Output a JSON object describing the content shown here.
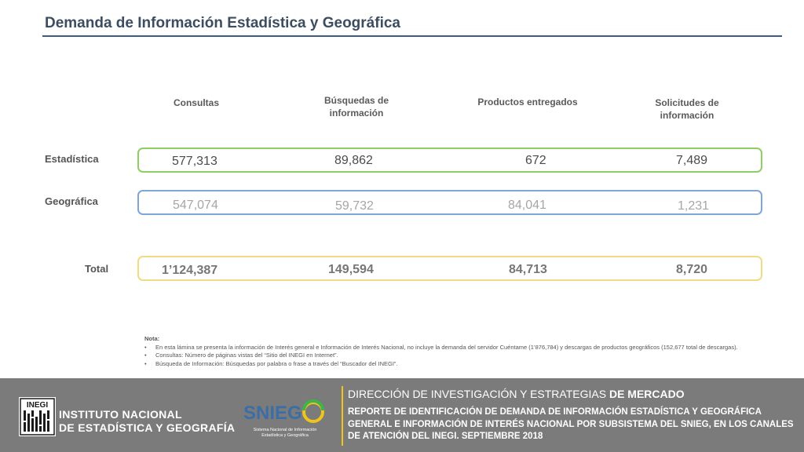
{
  "title": "Demanda de Información Estadística y Geográfica",
  "columns": [
    "Consultas",
    "Búsquedas de información",
    "Productos entregados",
    "Solicitudes de información"
  ],
  "rows": {
    "estadistica": {
      "label": "Estadística",
      "values": [
        "577,313",
        "89,862",
        "672",
        "7,489"
      ]
    },
    "geografica": {
      "label": "Geográfica",
      "values": [
        "547,074",
        "59,732",
        "84,041",
        "1,231"
      ]
    },
    "total": {
      "label": "Total",
      "values": [
        "1’124,387",
        "149,594",
        "84,713",
        "8,720"
      ]
    }
  },
  "note": {
    "heading": "Nota:",
    "items": [
      "En esta lámina se presenta la información de Interés general e Información de Interés Nacional, no incluye la demanda del servidor Cuéntame (1’876,784) y descargas de productos geográficos (152,677 total de descargas).",
      "Consultas: Número de páginas vistas del “Sitio del INEGI en Internet”.",
      "Búsqueda de Información: Búsquedas por palabra o frase a través del “Buscador del INEGI”."
    ]
  },
  "footer": {
    "inegi_line1": "INSTITUTO NACIONAL",
    "inegi_line2": "DE ESTADÍSTICA Y GEOGRAFÍA",
    "inegi_logo_text": "INEGI",
    "snieg_logo_text": "SNIEG",
    "snieg_sub1": "Sistema Nacional de Información",
    "snieg_sub2": "Estadística y Geográfica",
    "heading_regular": "DIRECCIÓN DE INVESTIGACIÓN Y ESTRATEGIAS",
    "heading_bold": "DE MERCADO",
    "report": "REPORTE DE IDENTIFICACIÓN DE DEMANDA DE INFORMACIÓN ESTADÍSTICA Y GEOGRÁFICA GENERAL E INFORMACIÓN DE INTERÉS NACIONAL POR SUBSISTEMA DEL SNIEG, EN LOS CANALES DE ATENCIÓN DEL INEGI. SEPTIEMBRE 2018"
  },
  "colors": {
    "title": "#3d4d60",
    "estadistica_border": "#8fce63",
    "geografica_border": "#7fa6d8",
    "total_border": "#f1dc84",
    "footer_bg": "#7b7b7b",
    "accent": "#f0c419"
  },
  "icons": [
    "inegi-logo",
    "snieg-logo"
  ]
}
